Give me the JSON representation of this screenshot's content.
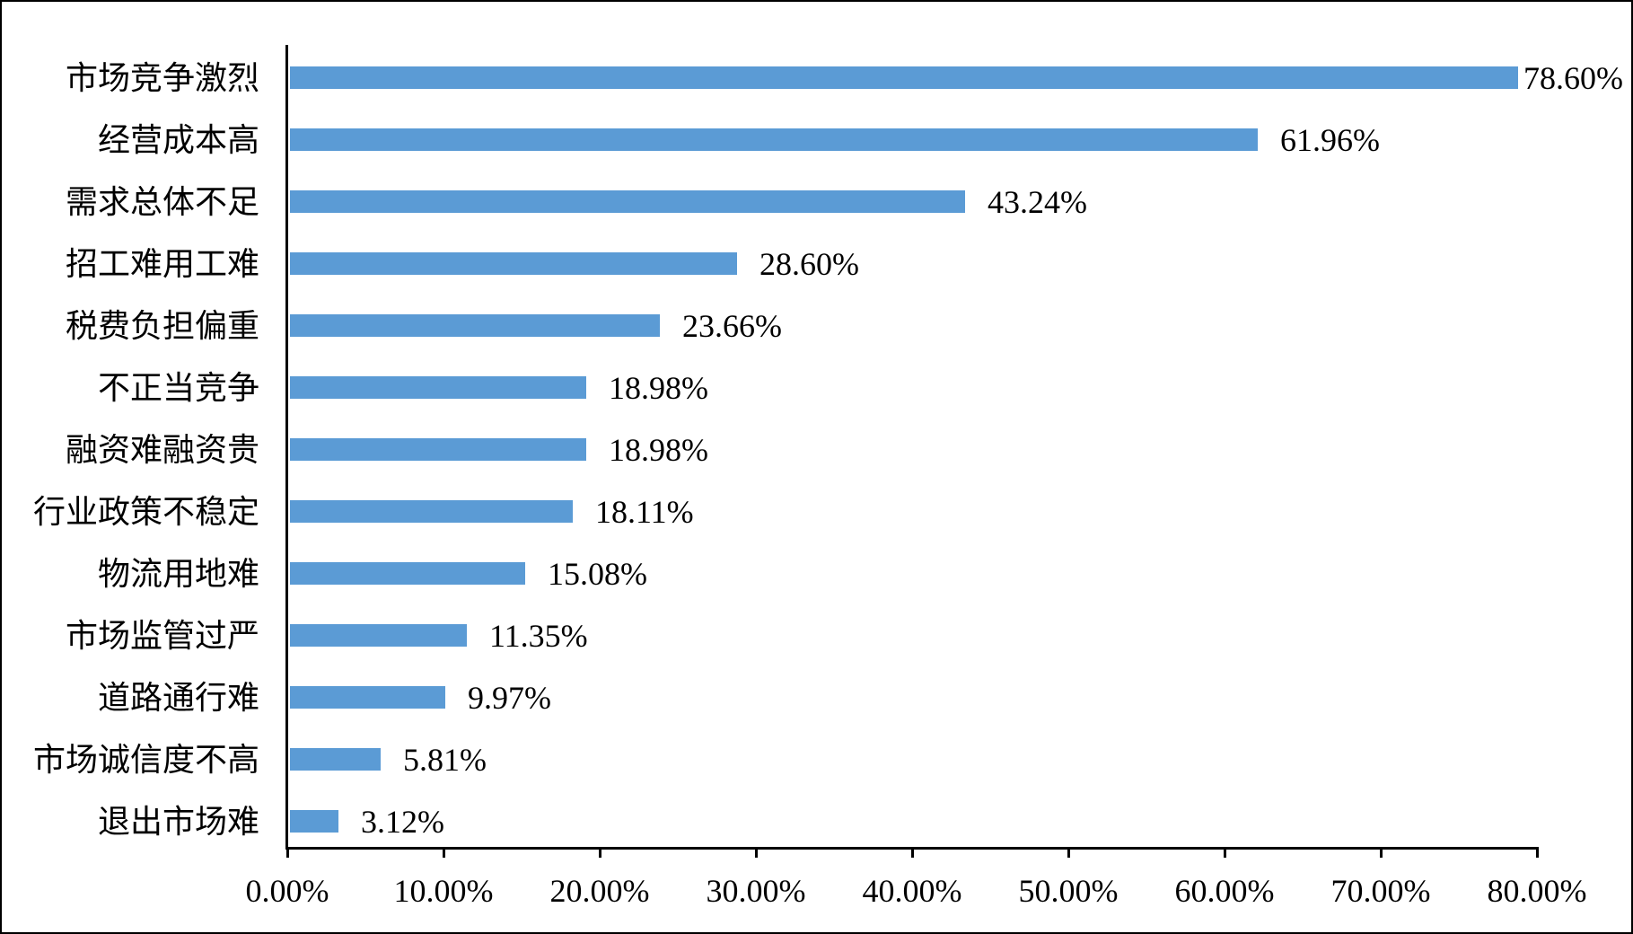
{
  "chart_data": {
    "type": "bar",
    "orientation": "horizontal",
    "title": "",
    "xlabel": "",
    "ylabel": "",
    "categories": [
      "市场竞争激烈",
      "经营成本高",
      "需求总体不足",
      "招工难用工难",
      "税费负担偏重",
      "不正当竞争",
      "融资难融资贵",
      "行业政策不稳定",
      "物流用地难",
      "市场监管过严",
      "道路通行难",
      "市场诚信度不高",
      "退出市场难"
    ],
    "values": [
      78.6,
      61.96,
      43.24,
      28.6,
      23.66,
      18.98,
      18.98,
      18.11,
      15.08,
      11.35,
      9.97,
      5.81,
      3.12
    ],
    "value_labels": [
      "78.60%",
      "61.96%",
      "43.24%",
      "28.60%",
      "23.66%",
      "18.98%",
      "18.98%",
      "18.11%",
      "15.08%",
      "11.35%",
      "9.97%",
      "5.81%",
      "3.12%"
    ],
    "xlim": [
      0,
      80
    ],
    "x_ticks": [
      0,
      10,
      20,
      30,
      40,
      50,
      60,
      70,
      80
    ],
    "x_tick_labels": [
      "0.00%",
      "10.00%",
      "20.00%",
      "30.00%",
      "40.00%",
      "50.00%",
      "60.00%",
      "70.00%",
      "80.00%"
    ],
    "grid": false,
    "legend": "none",
    "colors": {
      "bar": "#5b9bd5",
      "axis": "#000000",
      "text": "#000000",
      "background": "#ffffff",
      "frame_border": "#000000"
    }
  }
}
